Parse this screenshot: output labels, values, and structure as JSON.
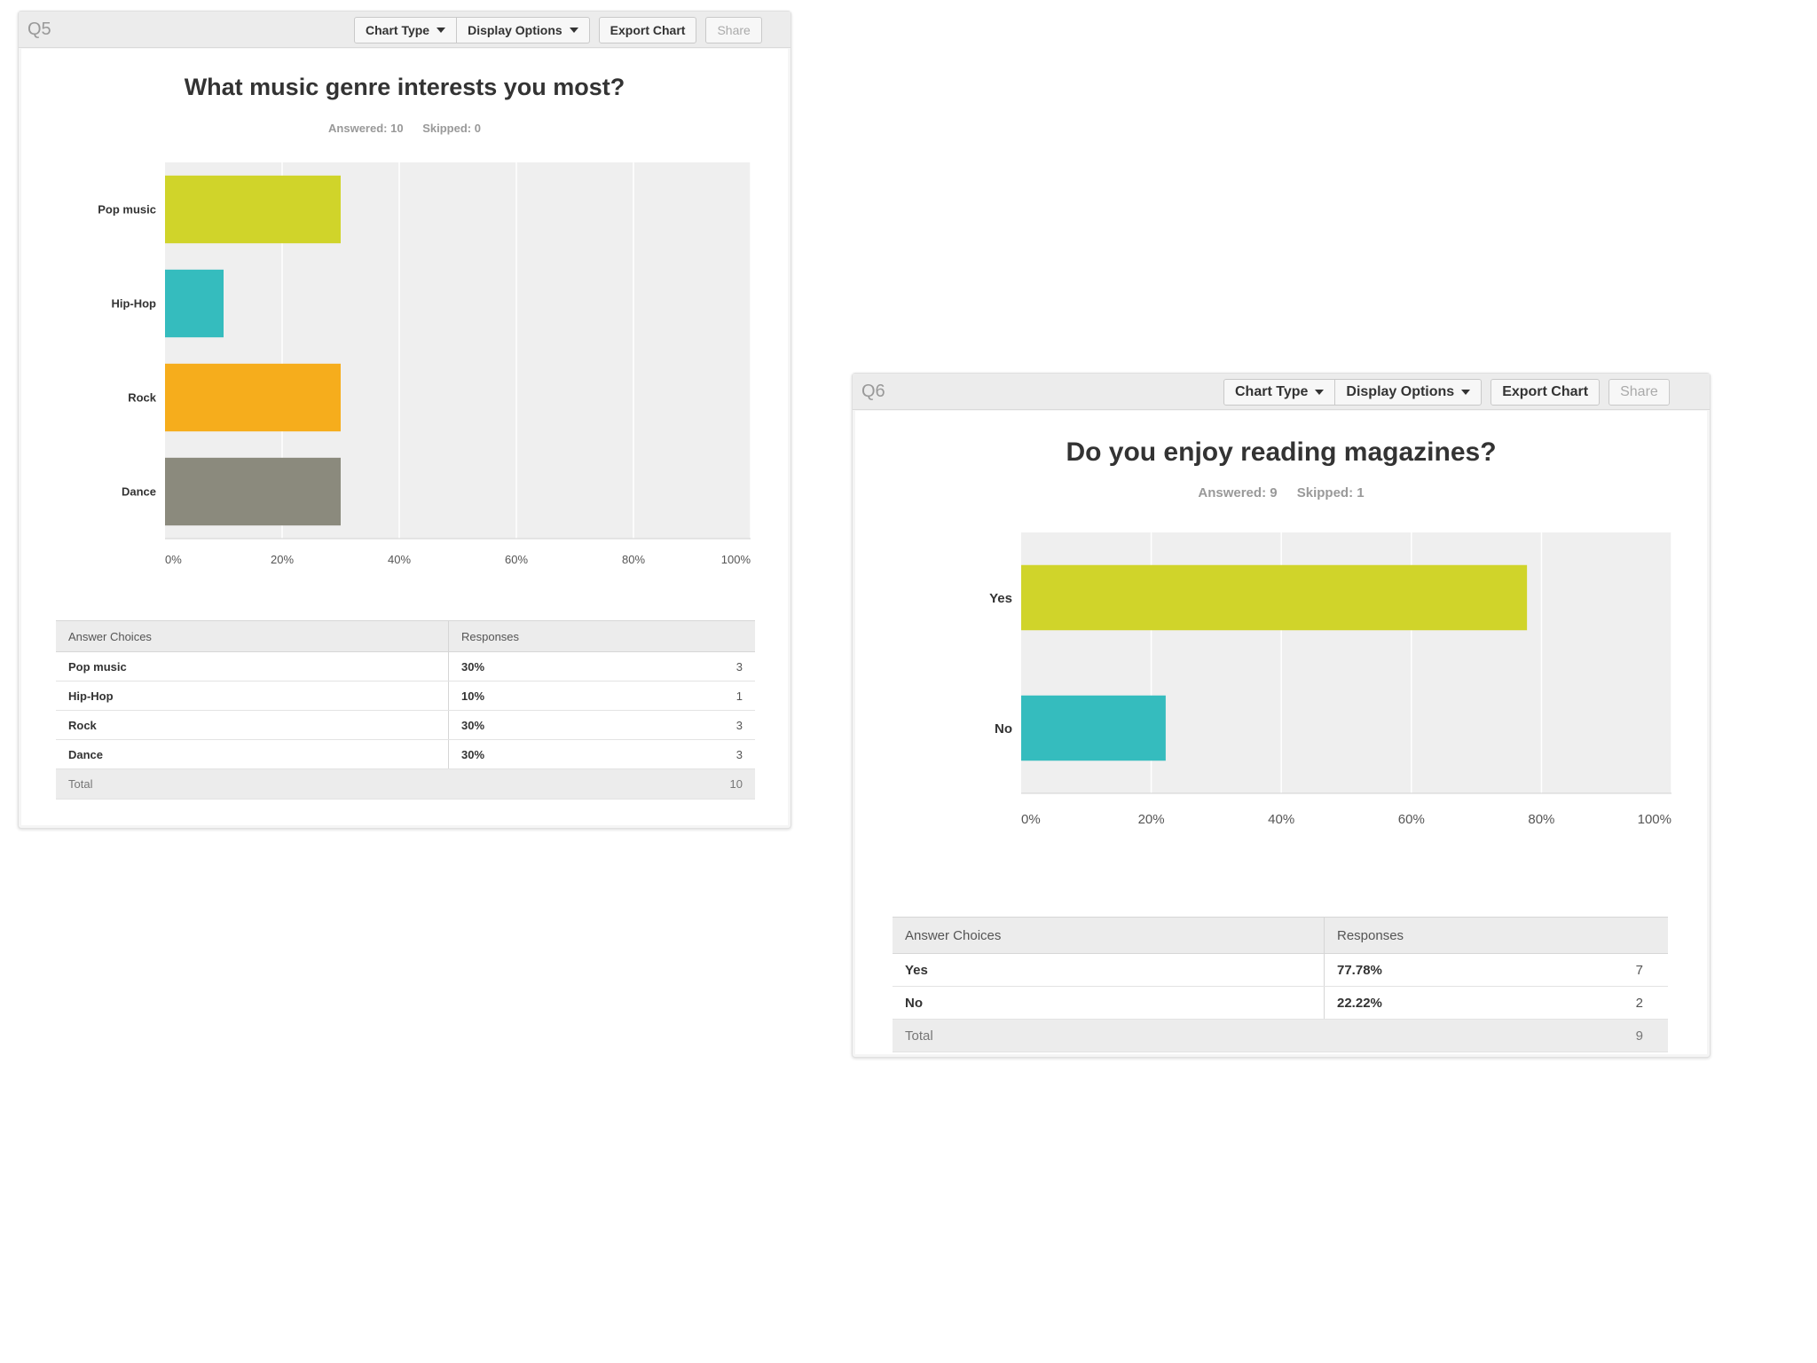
{
  "toolbar": {
    "chart_type": "Chart Type",
    "display_options": "Display Options",
    "export_chart": "Export Chart",
    "share": "Share"
  },
  "colors": [
    "#d0d42a",
    "#35bcbe",
    "#f6ad1c",
    "#8b8a7d"
  ],
  "table_headers": {
    "choices": "Answer Choices",
    "responses": "Responses",
    "total": "Total"
  },
  "q5": {
    "label": "Q5",
    "answered": "Answered: 10",
    "skipped": "Skipped: 0",
    "rows": [
      {
        "choice": "Pop music",
        "percent": "30%",
        "count": "3"
      },
      {
        "choice": "Hip-Hop",
        "percent": "10%",
        "count": "1"
      },
      {
        "choice": "Rock",
        "percent": "30%",
        "count": "3"
      },
      {
        "choice": "Dance",
        "percent": "30%",
        "count": "3"
      }
    ],
    "total": "10"
  },
  "q6": {
    "label": "Q6",
    "answered": "Answered: 9",
    "skipped": "Skipped: 1",
    "rows": [
      {
        "choice": "Yes",
        "percent": "77.78%",
        "count": "7"
      },
      {
        "choice": "No",
        "percent": "22.22%",
        "count": "2"
      }
    ],
    "total": "9"
  },
  "chart_data": [
    {
      "type": "bar",
      "orientation": "horizontal",
      "title": "What music genre interests you most?",
      "categories": [
        "Pop music",
        "Hip-Hop",
        "Rock",
        "Dance"
      ],
      "values": [
        30,
        10,
        30,
        30
      ],
      "xlim": [
        0,
        100
      ],
      "xticks": [
        "0%",
        "20%",
        "40%",
        "60%",
        "80%",
        "100%"
      ],
      "grid": true,
      "bar_colors": [
        "#d0d42a",
        "#35bcbe",
        "#f6ad1c",
        "#8b8a7d"
      ]
    },
    {
      "type": "bar",
      "orientation": "horizontal",
      "title": "Do you enjoy reading magazines?",
      "categories": [
        "Yes",
        "No"
      ],
      "values": [
        77.78,
        22.22
      ],
      "xlim": [
        0,
        100
      ],
      "xticks": [
        "0%",
        "20%",
        "40%",
        "60%",
        "80%",
        "100%"
      ],
      "grid": true,
      "bar_colors": [
        "#d0d42a",
        "#35bcbe"
      ]
    }
  ]
}
